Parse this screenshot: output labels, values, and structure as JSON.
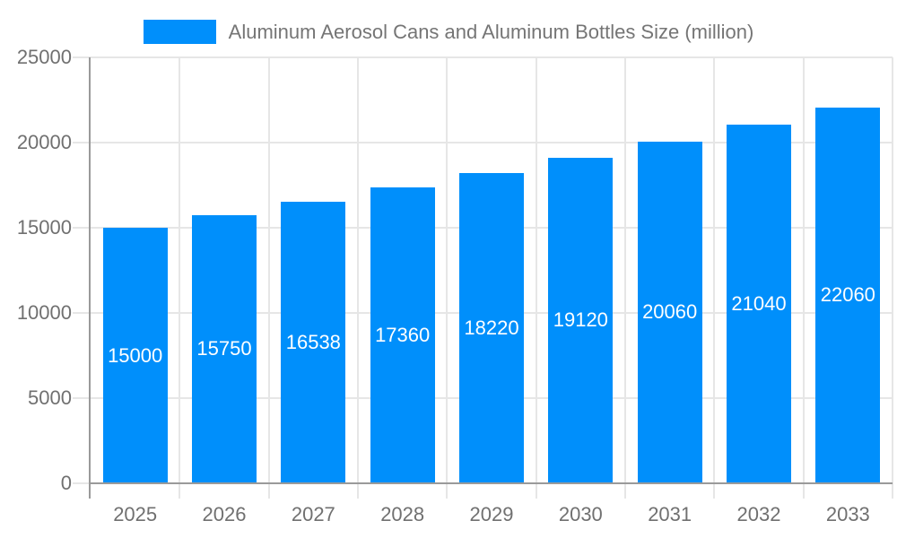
{
  "legend": {
    "label": "Aluminum Aerosol Cans and Aluminum Bottles Size (million)"
  },
  "chart_data": {
    "type": "bar",
    "title": "Aluminum Aerosol Cans and Aluminum Bottles Size (million)",
    "categories": [
      "2025",
      "2026",
      "2027",
      "2028",
      "2029",
      "2030",
      "2031",
      "2032",
      "2033"
    ],
    "values": [
      15000,
      15750,
      16538,
      17360,
      18220,
      19120,
      20060,
      21040,
      22060
    ],
    "data_labels": [
      "15000",
      "15750",
      "16538",
      "17360",
      "18220",
      "19120",
      "20060",
      "21040",
      "22060"
    ],
    "xlabel": "",
    "ylabel": "",
    "ylim": [
      0,
      25000
    ],
    "yticks": [
      0,
      5000,
      10000,
      15000,
      20000,
      25000
    ],
    "grid": true,
    "legend_position": "top"
  },
  "colors": {
    "bar": "#008ffb",
    "bar_label_text": "#ffffff",
    "grid": "#e6e6e6",
    "axis": "#9a9a9a",
    "tick_text": "#707070",
    "legend_text": "#757575"
  }
}
